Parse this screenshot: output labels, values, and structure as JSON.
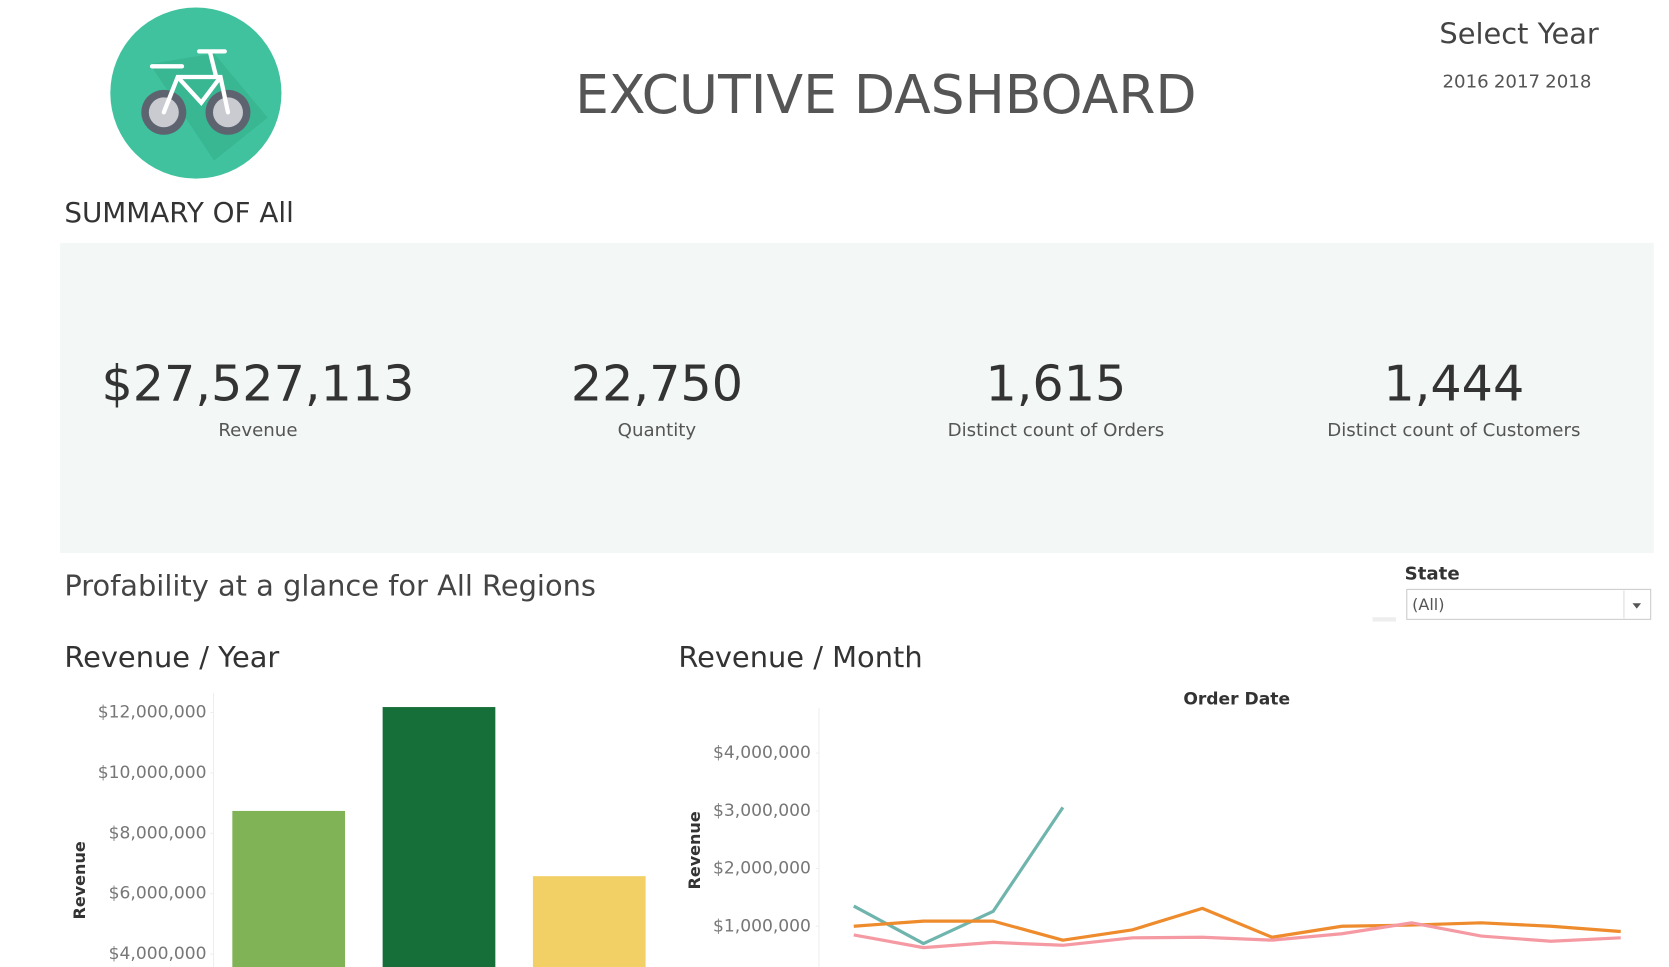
{
  "header": {
    "title": "EXCUTIVE DASHBOARD",
    "year_filter": {
      "label": "Select Year",
      "options": [
        "2016",
        "2017",
        "2018"
      ]
    }
  },
  "summary": {
    "title": "SUMMARY OF All",
    "kpis": [
      {
        "value": "$27,527,113",
        "label": "Revenue"
      },
      {
        "value": "22,750",
        "label": "Quantity"
      },
      {
        "value": "1,615",
        "label": "Distinct count of Orders"
      },
      {
        "value": "1,444",
        "label": "Distinct count of Customers"
      }
    ]
  },
  "section": {
    "title": "Profability at a glance for All Regions"
  },
  "state_filter": {
    "label": "State",
    "selected": "(All)"
  },
  "chart_data": [
    {
      "type": "bar",
      "title": "Revenue / Year",
      "y_label": "Revenue",
      "categories": [
        null,
        null,
        null
      ],
      "values": [
        8740000,
        12180000,
        6580000
      ],
      "colors": [
        "#7fb356",
        "#166f38",
        "#f2d066"
      ],
      "ylim": [
        3430000,
        12640000
      ],
      "yticks": [
        {
          "value": 4000000,
          "label": "$4,000,000"
        },
        {
          "value": 6000000,
          "label": "$6,000,000"
        },
        {
          "value": 8000000,
          "label": "$8,000,000"
        },
        {
          "value": 10000000,
          "label": "$10,000,000"
        },
        {
          "value": 12000000,
          "label": "$12,000,000"
        }
      ]
    },
    {
      "type": "line",
      "title": "Revenue / Month",
      "y_label": "Revenue",
      "x_label": "Order Date",
      "categories": [
        null,
        null,
        null,
        null,
        null,
        null,
        null,
        null,
        null,
        null,
        null,
        null
      ],
      "series": [
        {
          "color": "#6fb5ad",
          "values": [
            1350000,
            700000,
            1260000,
            3060000,
            null,
            null,
            null,
            null,
            null,
            null,
            null,
            null
          ]
        },
        {
          "color": "#ee8b2c",
          "values": [
            1000000,
            1090000,
            1090000,
            760000,
            940000,
            1310000,
            810000,
            1000000,
            1020000,
            1060000,
            1000000,
            910000
          ]
        },
        {
          "color": "#f59aa3",
          "values": [
            850000,
            630000,
            720000,
            670000,
            800000,
            810000,
            760000,
            870000,
            1060000,
            830000,
            740000,
            800000
          ]
        }
      ],
      "ylim": [
        220000,
        4780000
      ],
      "yticks": [
        {
          "value": 1000000,
          "label": "$1,000,000"
        },
        {
          "value": 2000000,
          "label": "$2,000,000"
        },
        {
          "value": 3000000,
          "label": "$3,000,000"
        },
        {
          "value": 4000000,
          "label": "$4,000,000"
        }
      ]
    }
  ]
}
